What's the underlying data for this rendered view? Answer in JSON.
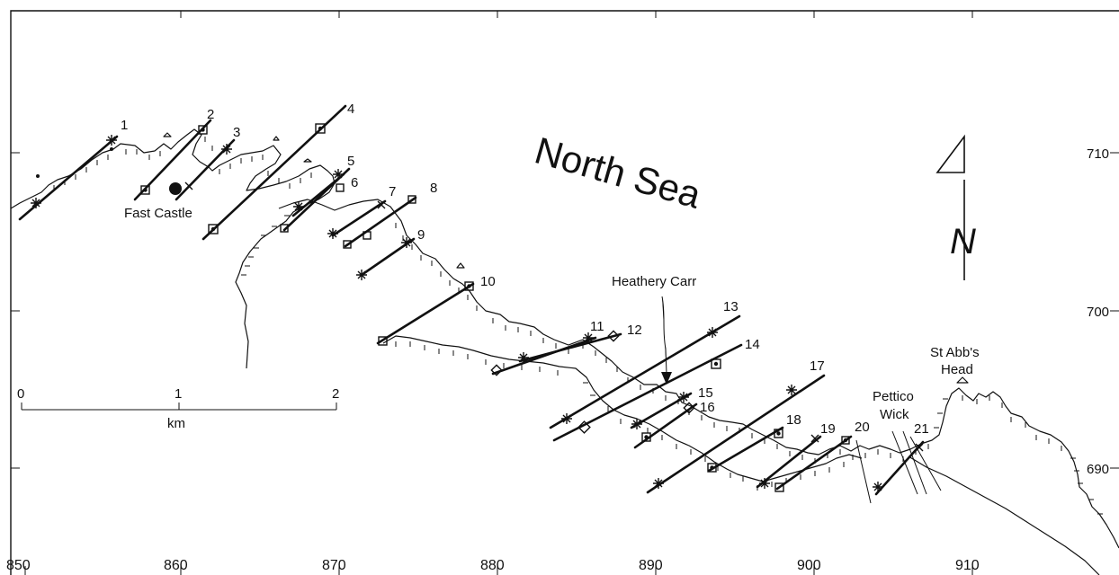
{
  "map": {
    "sea_label": "North Sea",
    "north_arrow_label": "N",
    "places": {
      "fast_castle": "Fast Castle",
      "heathery_carr": "Heathery Carr",
      "st_abbs_head_line1": "St Abb's",
      "st_abbs_head_line2": "Head",
      "pettico_wick_line1": "Pettico",
      "pettico_wick_line2": "Wick"
    },
    "scale_bar": {
      "ticks": [
        "0",
        "1",
        "2"
      ],
      "unit": "km"
    },
    "easting_labels": [
      "850",
      "860",
      "870",
      "880",
      "890",
      "900",
      "910"
    ],
    "northing_labels": [
      "710",
      "700",
      "690"
    ],
    "fault_labels": [
      "1",
      "2",
      "3",
      "4",
      "5",
      "6",
      "7",
      "8",
      "9",
      "10",
      "11",
      "12",
      "13",
      "14",
      "15",
      "16",
      "17",
      "18",
      "19",
      "20",
      "21"
    ]
  }
}
